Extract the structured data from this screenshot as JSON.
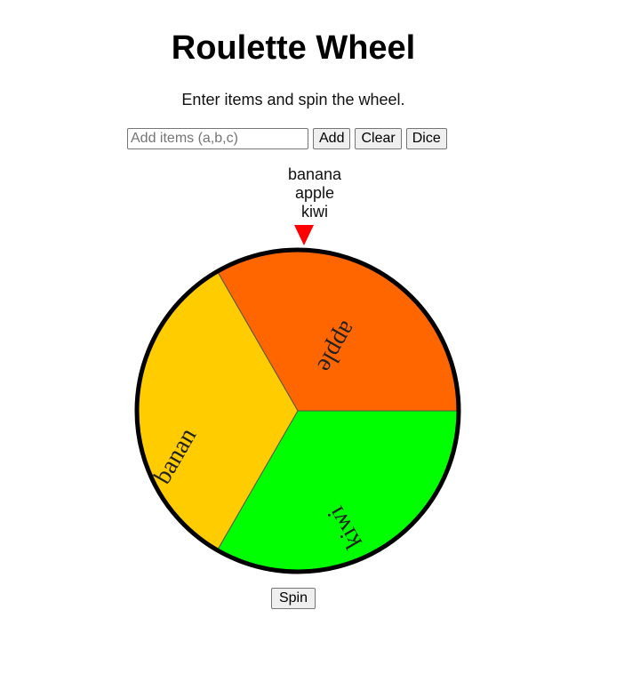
{
  "header": {
    "title": "Roulette Wheel",
    "subtitle": "Enter items and spin the wheel."
  },
  "controls": {
    "input_value": "",
    "input_placeholder": "Add items (a,b,c)",
    "add_label": "Add",
    "clear_label": "Clear",
    "dice_label": "Dice"
  },
  "result_list": [
    "banana",
    "apple",
    "kiwi"
  ],
  "wheel": {
    "segments": [
      {
        "label": "apple",
        "color": "#ff6600"
      },
      {
        "label": "kiwi",
        "color": "#00ff00"
      },
      {
        "label": "banan",
        "color": "#ffcc00"
      }
    ],
    "rim_color": "#000000",
    "pointer_color": "#ff0000"
  },
  "spin_label": "Spin"
}
